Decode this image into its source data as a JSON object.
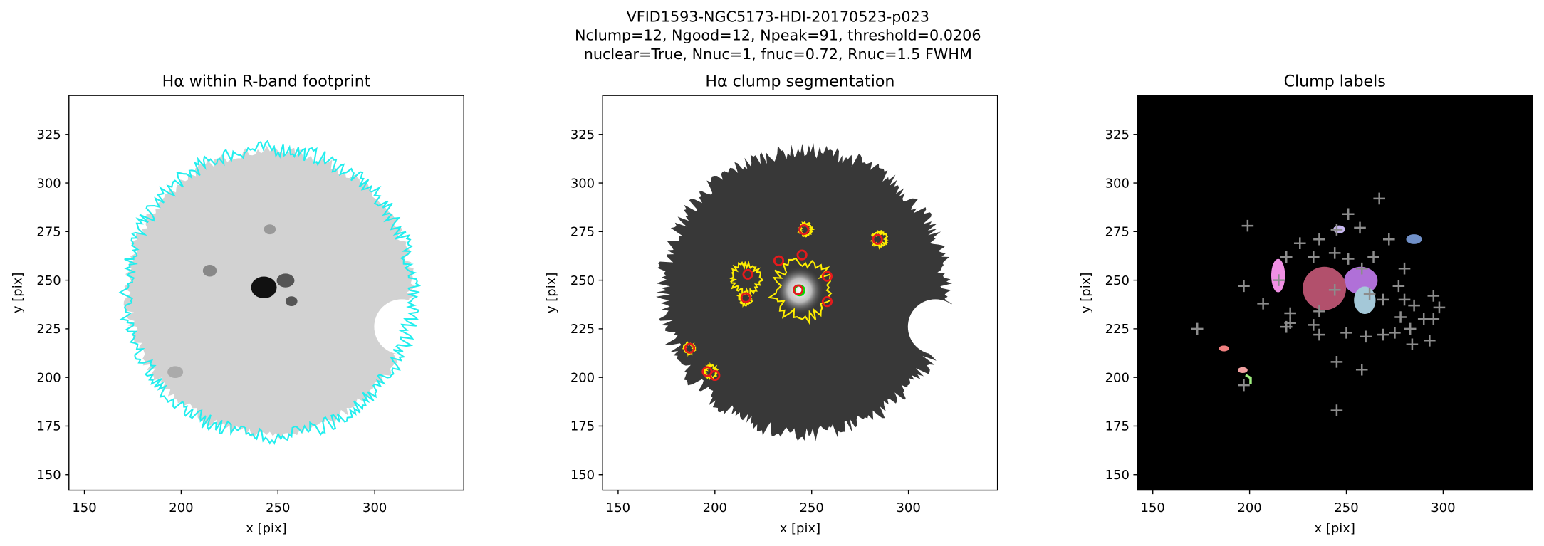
{
  "suptitle": [
    "VFID1593-NGC5173-HDI-20170523-p023",
    "Nclump=12, Ngood=12, Npeak=91, threshold=0.0206",
    "nuclear=True, Nnuc=1, fnuc=0.72, Rnuc=1.5 FWHM"
  ],
  "chart_data": [
    {
      "type": "image",
      "title": "Hα within R-band footprint",
      "x_label": "x [pix]",
      "y_label": "y [pix]",
      "xlim": [
        142,
        346
      ],
      "ylim": [
        142,
        345
      ],
      "xticks": [
        150,
        200,
        250,
        300
      ],
      "yticks": [
        150,
        175,
        200,
        225,
        250,
        275,
        300,
        325
      ]
    },
    {
      "type": "scatter",
      "title": "Hα clump segmentation",
      "x_label": "x [pix]",
      "y_label": "y [pix]",
      "xlim": [
        142,
        346
      ],
      "ylim": [
        142,
        345
      ],
      "xticks": [
        150,
        200,
        250,
        300
      ],
      "yticks": [
        150,
        175,
        200,
        225,
        250,
        275,
        300,
        325
      ],
      "marker": "circle",
      "color": "#e41a1c",
      "x": [
        217,
        233,
        245,
        246,
        284,
        216,
        243,
        258,
        258,
        187,
        196,
        200
      ],
      "y": [
        253,
        260,
        263,
        276,
        271,
        241,
        245,
        252,
        239,
        215,
        203,
        201
      ]
    },
    {
      "type": "scatter",
      "title": "Clump labels",
      "x_label": "x [pix]",
      "y_label": "y [pix]",
      "xlim": [
        142,
        346
      ],
      "ylim": [
        142,
        345
      ],
      "xticks": [
        150,
        200,
        250,
        300
      ],
      "yticks": [
        150,
        175,
        200,
        225,
        250,
        275,
        300,
        325
      ],
      "marker": "plus",
      "color": "#8c8c8c",
      "x": [
        199,
        251,
        267,
        245,
        257,
        272,
        197,
        173,
        197,
        245,
        258,
        245,
        207,
        215,
        219,
        226,
        236,
        233,
        244,
        251,
        258,
        244,
        264,
        280,
        277,
        269,
        262,
        280,
        285,
        295,
        290,
        278,
        283,
        275,
        298,
        295,
        293,
        284,
        269,
        260,
        250,
        236,
        233,
        221,
        221,
        236,
        219
      ],
      "y": [
        278,
        284,
        292,
        276,
        277,
        271,
        247,
        225,
        196,
        208,
        204,
        183,
        238,
        250,
        262,
        269,
        271,
        262,
        264,
        261,
        256,
        245,
        262,
        256,
        247,
        240,
        243,
        240,
        237,
        242,
        230,
        231,
        225,
        223,
        236,
        230,
        219,
        217,
        222,
        221,
        223,
        222,
        227,
        228,
        233,
        234,
        226
      ]
    }
  ]
}
